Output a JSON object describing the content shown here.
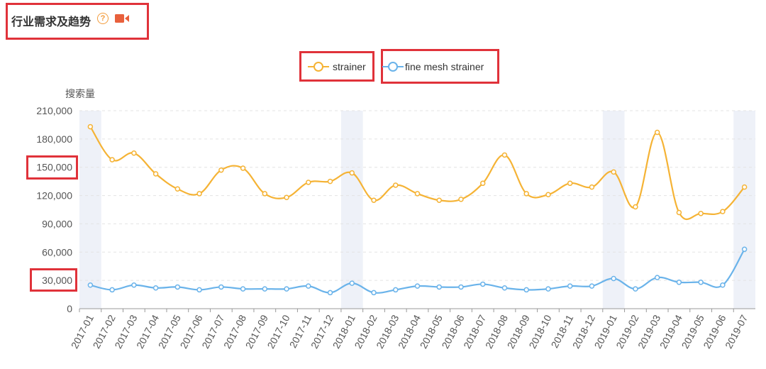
{
  "header": {
    "title": "行业需求及趋势",
    "help_icon": "question-circle-icon",
    "video_icon": "video-camera-icon"
  },
  "colors": {
    "strainer": "#f5b335",
    "fine_mesh_strainer": "#6ab3ea",
    "highlight": "#e0323a",
    "band": "#eef1f8"
  },
  "chart_data": {
    "type": "line",
    "ylabel": "搜索量",
    "xlabel": "",
    "ylim": [
      0,
      210000
    ],
    "yticks": [
      "0",
      "30,000",
      "60,000",
      "90,000",
      "120,000",
      "150,000",
      "180,000",
      "210,000"
    ],
    "categories": [
      "2017-01",
      "2017-02",
      "2017-03",
      "2017-04",
      "2017-05",
      "2017-06",
      "2017-07",
      "2017-08",
      "2017-09",
      "2017-10",
      "2017-11",
      "2017-12",
      "2018-01",
      "2018-02",
      "2018-03",
      "2018-04",
      "2018-05",
      "2018-06",
      "2018-07",
      "2018-08",
      "2018-09",
      "2018-10",
      "2018-11",
      "2018-12",
      "2019-01",
      "2019-02",
      "2019-03",
      "2019-04",
      "2019-05",
      "2019-06",
      "2019-07"
    ],
    "legend_position": "top-center",
    "grid": true,
    "series": [
      {
        "name": "strainer",
        "values": [
          193000,
          158000,
          165000,
          143000,
          127000,
          122000,
          147000,
          149000,
          122000,
          118000,
          134000,
          135000,
          144000,
          115000,
          131000,
          122000,
          115000,
          116000,
          133000,
          163000,
          122000,
          121000,
          133000,
          129000,
          145000,
          108000,
          187000,
          102000,
          101000,
          103000,
          129000
        ]
      },
      {
        "name": "fine mesh strainer",
        "values": [
          25000,
          20000,
          25000,
          22000,
          23000,
          20000,
          23000,
          21000,
          21000,
          21000,
          24000,
          17000,
          27000,
          17000,
          20000,
          24000,
          23000,
          23000,
          26000,
          22000,
          20000,
          21000,
          24000,
          24000,
          32000,
          21000,
          33000,
          28000,
          28000,
          25000,
          63000
        ]
      }
    ]
  }
}
